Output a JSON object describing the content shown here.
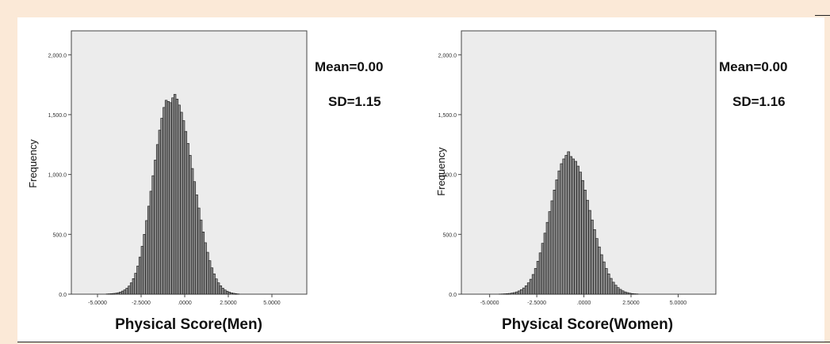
{
  "chart_data": [
    {
      "type": "bar",
      "title": "",
      "xlabel": "Physical Score(Men)",
      "ylabel": "Frequency",
      "ylim": [
        0,
        2200
      ],
      "xlim": [
        -6.5,
        7
      ],
      "xticks": [
        "-5.0000",
        "-2.5000",
        ".0000",
        "2.5000",
        "5.0000"
      ],
      "xtick_values": [
        -5,
        -2.5,
        0,
        2.5,
        5
      ],
      "yticks": [
        "0.0",
        "500.0",
        "1,000.0",
        "1,500.0",
        "2,000.0"
      ],
      "ytick_values": [
        0,
        500,
        1000,
        1500,
        2000
      ],
      "bin_width": 0.125,
      "bins_start": -4.5,
      "values": [
        2,
        3,
        4,
        6,
        8,
        12,
        18,
        26,
        36,
        50,
        68,
        95,
        130,
        175,
        235,
        310,
        400,
        500,
        615,
        735,
        860,
        990,
        1120,
        1250,
        1370,
        1470,
        1560,
        1620,
        1610,
        1600,
        1640,
        1670,
        1630,
        1580,
        1520,
        1450,
        1360,
        1260,
        1160,
        1050,
        940,
        830,
        720,
        620,
        520,
        430,
        350,
        280,
        220,
        170,
        128,
        95,
        70,
        50,
        35,
        25,
        17,
        11,
        7,
        4,
        2
      ],
      "grid": false,
      "stats": {
        "mean": "Mean=0.00",
        "sd": "SD=1.15"
      }
    },
    {
      "type": "bar",
      "title": "",
      "xlabel": "Physical Score(Women)",
      "ylabel": "Frequency",
      "ylim": [
        0,
        2200
      ],
      "xlim": [
        -6.5,
        7
      ],
      "xticks": [
        "-5.0000",
        "-2.5000",
        ".0000",
        "2.5000",
        "5.0000"
      ],
      "xtick_values": [
        -5,
        -2.5,
        0,
        2.5,
        5
      ],
      "yticks": [
        "0.0",
        "500.0",
        "1,000.0",
        "1,500.0",
        "2,000.0"
      ],
      "ytick_values": [
        0,
        500,
        1000,
        1500,
        2000
      ],
      "bin_width": 0.125,
      "bins_start": -4.5,
      "values": [
        1,
        2,
        3,
        4,
        6,
        9,
        13,
        19,
        27,
        38,
        52,
        70,
        95,
        125,
        165,
        215,
        275,
        345,
        425,
        510,
        600,
        690,
        780,
        870,
        955,
        1030,
        1090,
        1130,
        1160,
        1190,
        1150,
        1130,
        1110,
        1070,
        1020,
        950,
        870,
        785,
        700,
        620,
        540,
        465,
        395,
        330,
        270,
        215,
        170,
        132,
        100,
        75,
        55,
        40,
        28,
        19,
        13,
        8,
        5,
        3,
        2
      ],
      "grid": false,
      "stats": {
        "mean": "Mean=0.00",
        "sd": "SD=1.16"
      }
    }
  ]
}
